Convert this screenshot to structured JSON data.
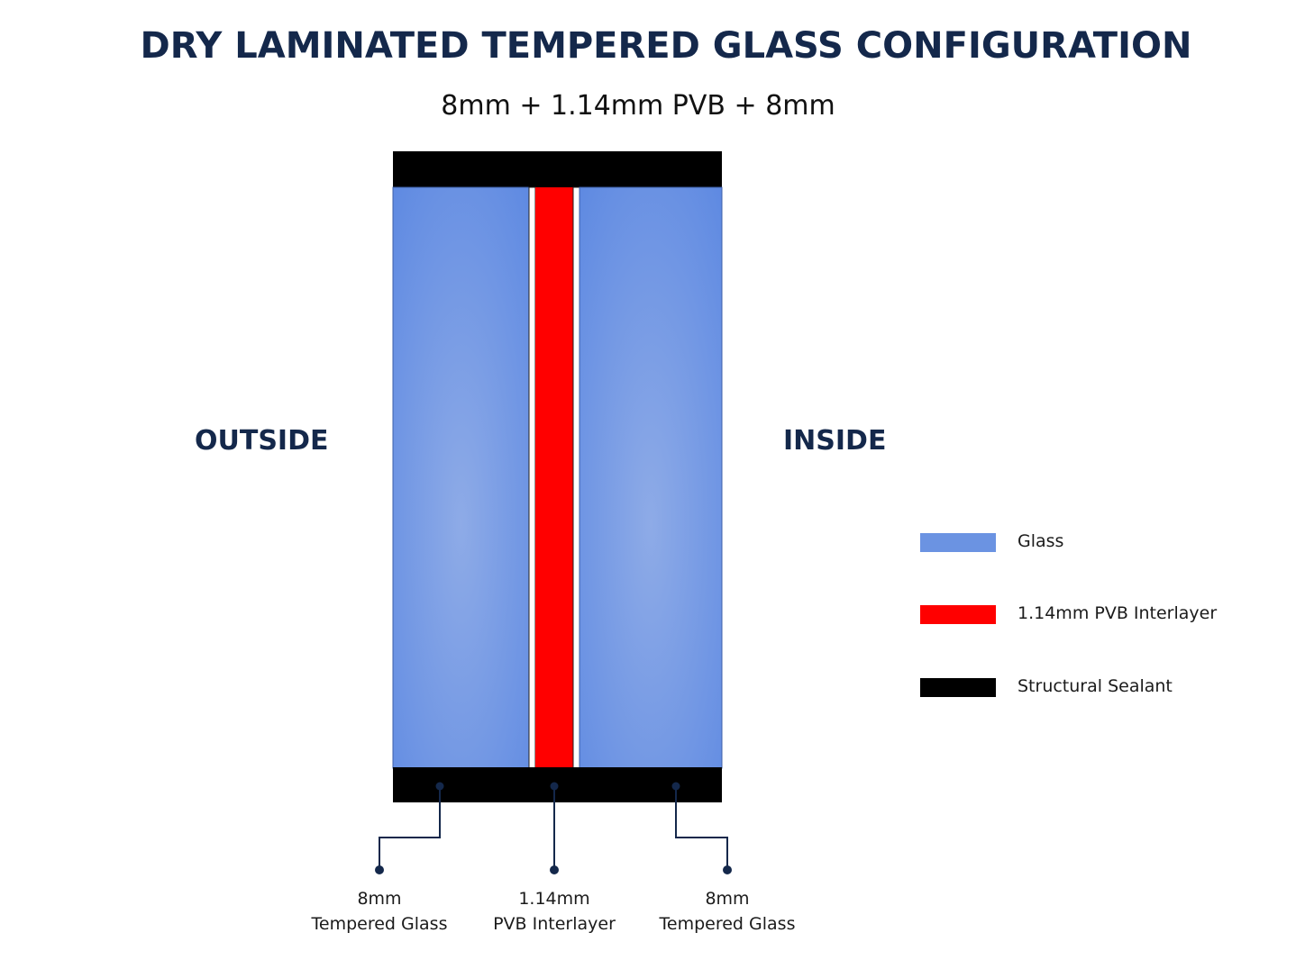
{
  "title": "DRY LAMINATED TEMPERED GLASS CONFIGURATION",
  "subtitle": "8mm + 1.14mm PVB + 8mm",
  "sides": {
    "left": "OUTSIDE",
    "right": "INSIDE"
  },
  "colors": {
    "glass": "#6b93e2",
    "glass_light": "#8aa8e6",
    "pvb": "#ff0000",
    "sealant": "#000000",
    "callout_line": "#14284b",
    "title": "#14284b"
  },
  "legend": [
    {
      "label": "Glass",
      "color": "#6b93e2"
    },
    {
      "label": "1.14mm PVB Interlayer",
      "color": "#ff0000"
    },
    {
      "label": "Structural Sealant",
      "color": "#000000"
    }
  ],
  "callouts": [
    {
      "line1": "8mm",
      "line2": "Tempered Glass"
    },
    {
      "line1": "1.14mm",
      "line2": "PVB Interlayer"
    },
    {
      "line1": "8mm",
      "line2": "Tempered Glass"
    }
  ]
}
